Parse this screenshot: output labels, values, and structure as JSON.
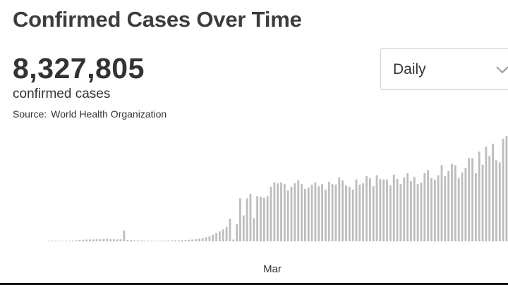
{
  "title": "Confirmed Cases Over Time",
  "total": "8,327,805",
  "total_label": "confirmed cases",
  "source_label": "Source:",
  "source_name": "World Health Organization",
  "range_select": {
    "value": "Daily"
  },
  "chart_data": {
    "type": "bar",
    "title": "Confirmed Cases Over Time",
    "xlabel": "",
    "ylabel": "",
    "x_tick_labels": [
      "Mar"
    ],
    "grid": false,
    "legend": "none",
    "bar_color": "#bdbdbd",
    "ylim": [
      0,
      150000
    ],
    "values": [
      100,
      200,
      300,
      400,
      500,
      700,
      900,
      1200,
      1600,
      2000,
      2400,
      2500,
      2600,
      2700,
      2800,
      3000,
      3200,
      3300,
      3100,
      2900,
      2700,
      2800,
      15200,
      2000,
      1800,
      1500,
      1400,
      1300,
      1200,
      1100,
      1000,
      1000,
      1000,
      1100,
      1200,
      1300,
      1400,
      1500,
      1600,
      1800,
      2000,
      2200,
      2500,
      3000,
      3700,
      4400,
      5500,
      7000,
      9000,
      11500,
      14000,
      16500,
      20000,
      31500,
      2500,
      24000,
      60000,
      36000,
      60000,
      66000,
      32000,
      63000,
      62000,
      61000,
      63000,
      76000,
      82000,
      81000,
      82000,
      80000,
      71000,
      76000,
      81000,
      85000,
      80000,
      73000,
      75000,
      79000,
      82000,
      77000,
      80000,
      72000,
      83000,
      80000,
      79000,
      89000,
      85000,
      78000,
      76000,
      72000,
      86000,
      79000,
      81000,
      91000,
      88000,
      77000,
      92000,
      87000,
      86000,
      86000,
      78000,
      93000,
      87000,
      80000,
      89000,
      95000,
      84000,
      90000,
      80000,
      82000,
      95000,
      99000,
      88000,
      86000,
      92000,
      106000,
      91000,
      98000,
      108000,
      106000,
      88000,
      96000,
      102000,
      116000,
      116000,
      95000,
      125000,
      107000,
      132000,
      119000,
      136000,
      113000,
      110000,
      143000,
      147000
    ]
  }
}
